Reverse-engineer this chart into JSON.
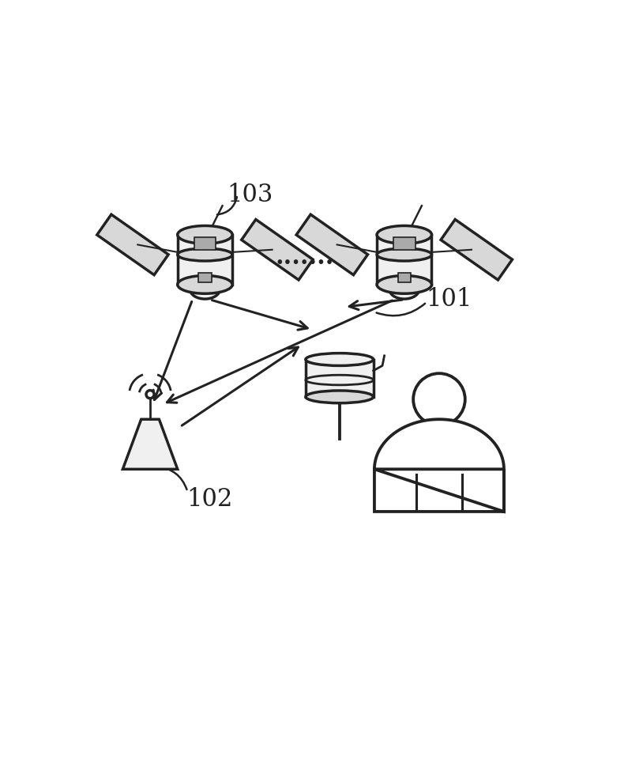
{
  "background_color": "#ffffff",
  "label_103": "103",
  "label_102": "102",
  "label_101": "101",
  "dots_text": ".......",
  "label_color": "#222222",
  "arrow_color": "#222222",
  "icon_edge_color": "#222222",
  "icon_face_light": "#f0f0f0",
  "icon_face_gray": "#d8d8d8",
  "icon_face_dark": "#aaaaaa",
  "s1x": 0.25,
  "s1y": 0.76,
  "s2x": 0.65,
  "s2y": 0.76,
  "atx": 0.14,
  "aty": 0.46,
  "dix": 0.52,
  "diy": 0.5,
  "pex": 0.72,
  "pey": 0.3,
  "label_fs": 22,
  "arrow_lw": 2.2
}
